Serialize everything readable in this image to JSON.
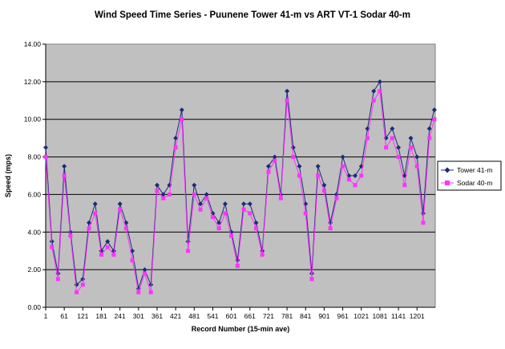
{
  "chart_data": {
    "type": "line",
    "title": "Wind Speed Time Series - Puunene Tower 41-m vs ART VT-1  Sodar 40-m",
    "xlabel": "Record Number (15-min ave)",
    "ylabel": "Speed (mps)",
    "xlim": [
      1,
      1260
    ],
    "ylim": [
      0,
      14
    ],
    "yticks": [
      "0.00",
      "2.00",
      "4.00",
      "6.00",
      "8.00",
      "10.00",
      "12.00",
      "14.00"
    ],
    "xticks": [
      "1",
      "61",
      "121",
      "181",
      "241",
      "301",
      "361",
      "421",
      "481",
      "541",
      "601",
      "661",
      "721",
      "781",
      "841",
      "901",
      "961",
      "1021",
      "1081",
      "1141",
      "1201"
    ],
    "grid": "horizontal",
    "legend_position": "right",
    "x": [
      1,
      21,
      41,
      61,
      81,
      101,
      121,
      141,
      161,
      181,
      201,
      221,
      241,
      261,
      281,
      301,
      321,
      341,
      361,
      381,
      401,
      421,
      441,
      461,
      481,
      501,
      521,
      541,
      561,
      581,
      601,
      621,
      641,
      661,
      681,
      701,
      721,
      741,
      761,
      781,
      801,
      821,
      841,
      861,
      881,
      901,
      921,
      941,
      961,
      981,
      1001,
      1021,
      1041,
      1061,
      1081,
      1101,
      1121,
      1141,
      1161,
      1181,
      1201,
      1221,
      1241,
      1257
    ],
    "series": [
      {
        "name": "Tower 41-m",
        "color": "#1c2a78",
        "marker": "diamond",
        "values": [
          8.5,
          3.5,
          1.8,
          7.5,
          4.0,
          1.2,
          1.5,
          4.5,
          5.5,
          3.0,
          3.5,
          3.0,
          5.5,
          4.5,
          3.0,
          1.0,
          2.0,
          1.2,
          6.5,
          6.0,
          6.5,
          9.0,
          10.5,
          3.5,
          6.5,
          5.5,
          6.0,
          5.0,
          4.5,
          5.5,
          4.0,
          2.5,
          5.5,
          5.5,
          4.5,
          3.0,
          7.5,
          8.0,
          6.0,
          11.5,
          8.5,
          7.5,
          5.5,
          1.8,
          7.5,
          6.5,
          4.5,
          6.0,
          8.0,
          7.0,
          7.0,
          7.5,
          9.5,
          11.5,
          12.0,
          9.0,
          9.5,
          8.5,
          7.0,
          9.0,
          8.0,
          5.0,
          9.5,
          10.5
        ]
      },
      {
        "name": "Sodar 40-m",
        "color": "#ff33ff",
        "marker": "square",
        "values": [
          8.0,
          3.2,
          1.5,
          7.0,
          3.8,
          0.8,
          1.2,
          4.2,
          5.0,
          2.8,
          3.2,
          2.8,
          5.2,
          4.2,
          2.5,
          0.8,
          1.8,
          0.8,
          6.2,
          5.8,
          6.0,
          8.5,
          10.0,
          3.0,
          6.0,
          5.2,
          5.8,
          4.8,
          4.2,
          5.0,
          3.8,
          2.2,
          5.2,
          5.0,
          4.2,
          2.8,
          7.2,
          7.8,
          5.8,
          11.0,
          8.0,
          7.0,
          5.0,
          1.5,
          7.0,
          6.2,
          4.2,
          5.8,
          7.5,
          6.8,
          6.5,
          7.0,
          9.0,
          11.0,
          11.5,
          8.5,
          9.0,
          8.0,
          6.5,
          8.5,
          7.5,
          4.5,
          9.0,
          10.0
        ]
      }
    ]
  }
}
